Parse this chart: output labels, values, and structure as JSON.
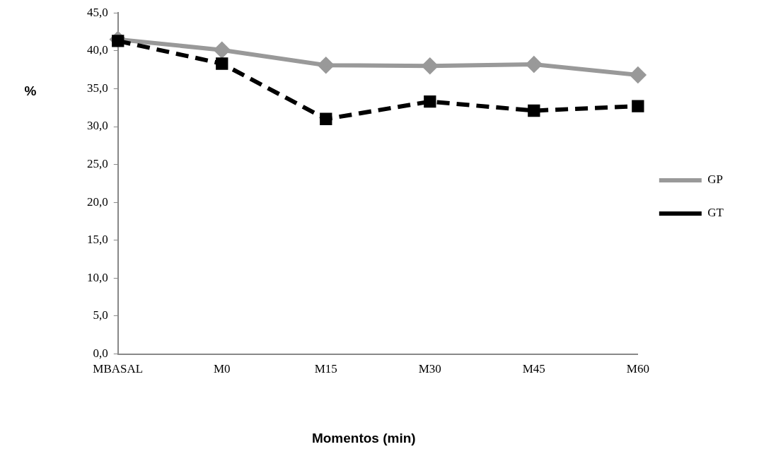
{
  "chart_data": {
    "type": "line",
    "xlabel": "Momentos (min)",
    "ylabel": "%",
    "categories": [
      "MBASAL",
      "M0",
      "M15",
      "M30",
      "M45",
      "M60"
    ],
    "series": [
      {
        "name": "GP",
        "color": "#999999",
        "values": [
          41.5,
          40.1,
          38.1,
          38.0,
          38.2,
          36.8
        ],
        "marker": "diamond",
        "line_style": "solid"
      },
      {
        "name": "GT",
        "color": "#000000",
        "values": [
          41.3,
          38.3,
          31.0,
          33.3,
          32.1,
          32.7
        ],
        "marker": "square",
        "line_style": "dashed"
      }
    ],
    "ylim": [
      0,
      45
    ],
    "yticks": [
      {
        "value": 0,
        "label": "0,0"
      },
      {
        "value": 5,
        "label": "5,0"
      },
      {
        "value": 10,
        "label": "10,0"
      },
      {
        "value": 15,
        "label": "15,0"
      },
      {
        "value": 20,
        "label": "20,0"
      },
      {
        "value": 25,
        "label": "25,0"
      },
      {
        "value": 30,
        "label": "30,0"
      },
      {
        "value": 35,
        "label": "35,0"
      },
      {
        "value": 40,
        "label": "40,0"
      },
      {
        "value": 45,
        "label": "45,0"
      }
    ],
    "grid": false,
    "legend": "right"
  }
}
